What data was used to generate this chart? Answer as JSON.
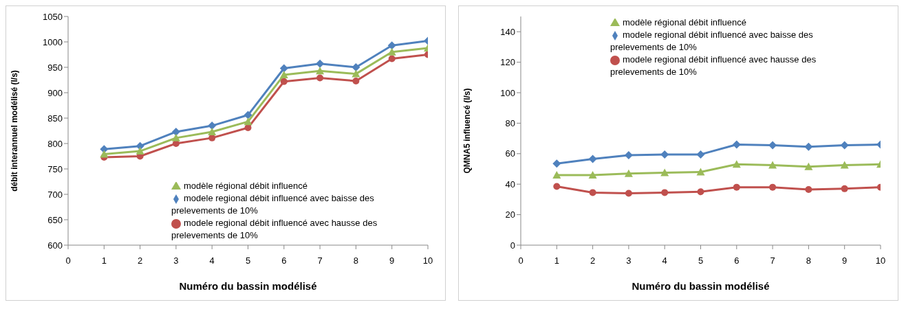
{
  "chart_data": [
    {
      "type": "line",
      "xlabel": "Numéro du bassin modélisé",
      "ylabel": "débit interannuel modélisé  (l/s)",
      "x": [
        1,
        2,
        3,
        4,
        5,
        6,
        7,
        8,
        9,
        10
      ],
      "xlim": [
        0,
        10
      ],
      "xticks": [
        0,
        1,
        2,
        3,
        4,
        5,
        6,
        7,
        8,
        9,
        10
      ],
      "ylim": [
        600,
        1050
      ],
      "yticks": [
        600,
        650,
        700,
        750,
        800,
        850,
        900,
        950,
        1000,
        1050
      ],
      "grid": false,
      "legend": "bottom",
      "line_style": "solid",
      "series": [
        {
          "name": "modèle régional débit influencé",
          "color": "#9bbb59",
          "marker": "triangle",
          "values": [
            779,
            785,
            811,
            823,
            843,
            935,
            943,
            937,
            980,
            988
          ]
        },
        {
          "name": "modele regional débit influencé avec baisse des prelevements de 10%",
          "color": "#4f81bd",
          "marker": "diamond",
          "values": [
            789,
            795,
            823,
            835,
            856,
            948,
            957,
            950,
            993,
            1002
          ]
        },
        {
          "name": "modele regional débit influencé avec hausse des prelevements de 10%",
          "color": "#c0504d",
          "marker": "circle",
          "values": [
            773,
            775,
            800,
            811,
            831,
            922,
            929,
            923,
            967,
            975
          ]
        }
      ]
    },
    {
      "type": "line",
      "xlabel": "Numéro du bassin modélisé",
      "ylabel": "QMNA5 influencé  (l/s)",
      "x": [
        1,
        2,
        3,
        4,
        5,
        6,
        7,
        8,
        9,
        10
      ],
      "xlim": [
        0,
        10
      ],
      "xticks": [
        0,
        1,
        2,
        3,
        4,
        5,
        6,
        7,
        8,
        9,
        10
      ],
      "ylim": [
        0,
        150
      ],
      "yticks": [
        0,
        20,
        40,
        60,
        80,
        100,
        120,
        140
      ],
      "grid": false,
      "legend": "top",
      "line_style": "solid",
      "series": [
        {
          "name": "modèle régional débit influencé",
          "color": "#9bbb59",
          "marker": "triangle",
          "values": [
            46,
            46,
            47,
            47.5,
            48,
            53,
            52.5,
            51.5,
            52.5,
            53
          ]
        },
        {
          "name": "modele regional débit influencé avec baisse des prelevements de 10%",
          "color": "#4f81bd",
          "marker": "diamond",
          "values": [
            53.5,
            56.5,
            59,
            59.5,
            59.5,
            66,
            65.5,
            64.5,
            65.5,
            66
          ]
        },
        {
          "name": "modele regional débit influencé avec hausse des prelevements de 10%",
          "color": "#c0504d",
          "marker": "circle",
          "values": [
            38.5,
            34.5,
            34,
            34.5,
            35,
            38,
            38,
            36.5,
            37,
            38
          ]
        }
      ]
    }
  ]
}
